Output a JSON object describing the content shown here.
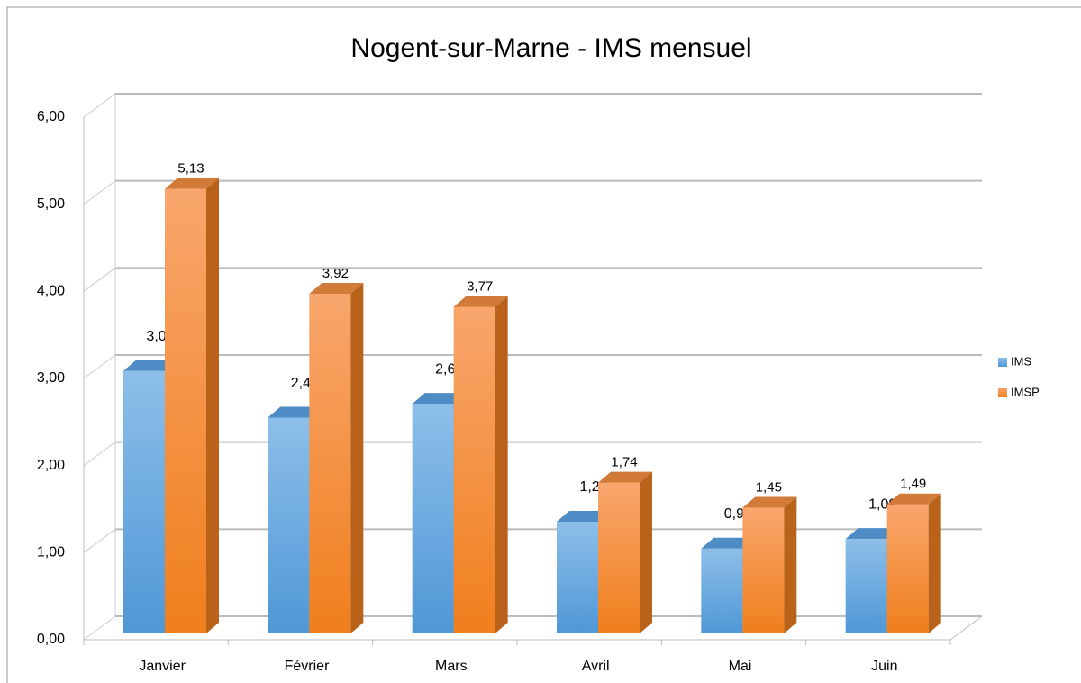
{
  "chart_data": {
    "type": "bar3d",
    "title": "Nogent-sur-Marne - IMS mensuel",
    "categories": [
      "Janvier",
      "Février",
      "Mars",
      "Avril",
      "Mai",
      "Juin"
    ],
    "series": [
      {
        "name": "IMS",
        "color": "#5fa3dc",
        "values": [
          3.03,
          2.49,
          2.65,
          1.29,
          0.98,
          1.09
        ],
        "value_labels": [
          "3,03",
          "2,49",
          "2,65",
          "1,29",
          "0,98",
          "1,09"
        ]
      },
      {
        "name": "IMSP",
        "color": "#f5872a",
        "values": [
          5.13,
          3.92,
          3.77,
          1.74,
          1.45,
          1.49
        ],
        "value_labels": [
          "5,13",
          "3,92",
          "3,77",
          "1,74",
          "1,45",
          "1,49"
        ]
      }
    ],
    "ylim": [
      0,
      6
    ],
    "yticks": [
      {
        "value": 0,
        "label": "0,00"
      },
      {
        "value": 1,
        "label": "1,00"
      },
      {
        "value": 2,
        "label": "2,00"
      },
      {
        "value": 3,
        "label": "3,00"
      },
      {
        "value": 4,
        "label": "4,00"
      },
      {
        "value": 5,
        "label": "5,00"
      },
      {
        "value": 6,
        "label": "6,00"
      }
    ],
    "grid": true,
    "legend": "right"
  }
}
